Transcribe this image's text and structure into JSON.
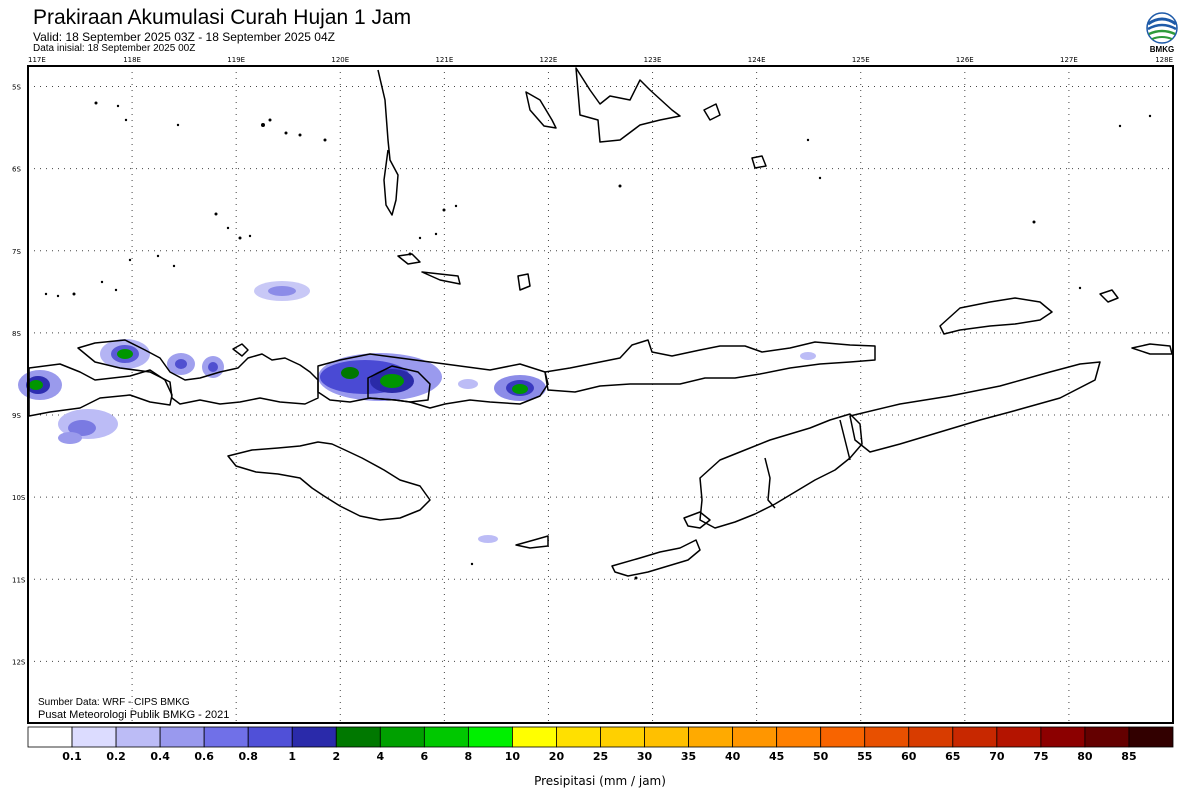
{
  "header": {
    "title": "Prakiraan Akumulasi Curah Hujan 1 Jam",
    "valid": "Valid: 18 September 2025 03Z - 18 September 2025 04Z",
    "initial": "Data inisial: 18 September 2025 00Z"
  },
  "logo": {
    "text": "BMKG",
    "icon": "bmkg-logo-icon"
  },
  "map": {
    "lon_labels": [
      "117E",
      "118E",
      "119E",
      "120E",
      "121E",
      "122E",
      "123E",
      "124E",
      "125E",
      "126E",
      "127E",
      "128E"
    ],
    "lat_labels": [
      "5S",
      "6S",
      "7S",
      "8S",
      "9S",
      "10S",
      "11S",
      "12S"
    ],
    "lon_range": [
      117,
      128
    ],
    "lat_range": [
      -4.75,
      -12.75
    ]
  },
  "credits": {
    "source": "Sumber Data: WRF - CIPS BMKG",
    "org": "Pusat Meteorologi Publik BMKG - 2021"
  },
  "colorbar": {
    "title": "Presipitasi (mm / jam)",
    "labels": [
      "0.1",
      "0.2",
      "0.4",
      "0.6",
      "0.8",
      "1",
      "2",
      "4",
      "6",
      "8",
      "10",
      "20",
      "25",
      "30",
      "35",
      "40",
      "45",
      "50",
      "55",
      "60",
      "65",
      "70",
      "75",
      "80",
      "85"
    ],
    "colors": [
      "#ffffff",
      "#dcdcff",
      "#bcbcf6",
      "#9999ee",
      "#7070e8",
      "#5050d8",
      "#2a2aaa",
      "#007800",
      "#00a000",
      "#00c800",
      "#00f000",
      "#ffff00",
      "#ffe000",
      "#ffd000",
      "#ffc000",
      "#ffaa00",
      "#ff9600",
      "#ff8000",
      "#f86400",
      "#e85000",
      "#d83c00",
      "#c82800",
      "#b41400",
      "#8c0000",
      "#640000",
      "#320000"
    ]
  }
}
